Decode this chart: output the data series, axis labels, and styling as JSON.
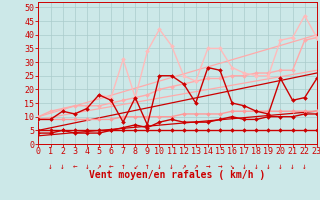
{
  "xlabel": "Vent moyen/en rafales ( km/h )",
  "xlim": [
    0,
    23
  ],
  "ylim": [
    0,
    52
  ],
  "yticks": [
    0,
    5,
    10,
    15,
    20,
    25,
    30,
    35,
    40,
    45,
    50
  ],
  "xticks": [
    0,
    1,
    2,
    3,
    4,
    5,
    6,
    7,
    8,
    9,
    10,
    11,
    12,
    13,
    14,
    15,
    16,
    17,
    18,
    19,
    20,
    21,
    22,
    23
  ],
  "bg_color": "#cce8e8",
  "grid_color": "#aacccc",
  "lines": [
    {
      "x": [
        0,
        1,
        2,
        3,
        4,
        5,
        6,
        7,
        8,
        9,
        10,
        11,
        12,
        13,
        14,
        15,
        16,
        17,
        18,
        19,
        20,
        21,
        22,
        23
      ],
      "y": [
        5,
        5,
        5,
        5,
        5,
        5,
        5,
        5,
        5,
        5,
        5,
        5,
        5,
        5,
        5,
        5,
        5,
        5,
        5,
        5,
        5,
        5,
        5,
        5
      ],
      "color": "#cc0000",
      "lw": 1.0,
      "marker": "D",
      "ms": 2.0
    },
    {
      "x": [
        0,
        23
      ],
      "y": [
        3,
        12
      ],
      "color": "#cc0000",
      "lw": 0.9,
      "marker": null,
      "ms": 0
    },
    {
      "x": [
        0,
        23
      ],
      "y": [
        5,
        26
      ],
      "color": "#cc0000",
      "lw": 0.9,
      "marker": null,
      "ms": 0
    },
    {
      "x": [
        0,
        23
      ],
      "y": [
        9,
        27
      ],
      "color": "#ffaaaa",
      "lw": 0.9,
      "marker": null,
      "ms": 0
    },
    {
      "x": [
        0,
        23
      ],
      "y": [
        10,
        40
      ],
      "color": "#ffaaaa",
      "lw": 0.9,
      "marker": null,
      "ms": 0
    },
    {
      "x": [
        0,
        1,
        2,
        3,
        4,
        5,
        6,
        7,
        8,
        9,
        10,
        11,
        12,
        13,
        14,
        15,
        16,
        17,
        18,
        19,
        20,
        21,
        22,
        23
      ],
      "y": [
        9,
        9,
        9,
        9,
        9,
        9,
        9,
        10,
        10,
        10,
        10,
        10,
        11,
        11,
        11,
        11,
        12,
        12,
        12,
        12,
        12,
        12,
        12,
        12
      ],
      "color": "#ff9999",
      "lw": 1.0,
      "marker": "D",
      "ms": 2.0
    },
    {
      "x": [
        0,
        1,
        2,
        3,
        4,
        5,
        6,
        7,
        8,
        9,
        10,
        11,
        12,
        13,
        14,
        15,
        16,
        17,
        18,
        19,
        20,
        21,
        22,
        23
      ],
      "y": [
        10,
        12,
        13,
        14,
        14,
        14,
        15,
        16,
        17,
        18,
        20,
        21,
        22,
        23,
        24,
        24,
        25,
        25,
        26,
        26,
        27,
        27,
        38,
        39
      ],
      "color": "#ffaaaa",
      "lw": 1.0,
      "marker": "D",
      "ms": 2.0
    },
    {
      "x": [
        5,
        6,
        7,
        8,
        9,
        10,
        11,
        12,
        13,
        14,
        15,
        16,
        17,
        18,
        19,
        20,
        21,
        22,
        23
      ],
      "y": [
        18,
        17,
        31,
        17,
        34,
        42,
        36,
        25,
        23,
        35,
        35,
        28,
        26,
        25,
        25,
        38,
        39,
        47,
        39
      ],
      "color": "#ffbbbb",
      "lw": 1.0,
      "marker": "D",
      "ms": 2.0
    },
    {
      "x": [
        0,
        1,
        2,
        3,
        4,
        5,
        6,
        7,
        8,
        9,
        10,
        11,
        12,
        13,
        14,
        15,
        16,
        17,
        18,
        19,
        20,
        21,
        22,
        23
      ],
      "y": [
        4,
        4,
        5,
        4,
        4,
        4,
        5,
        6,
        7,
        6,
        8,
        9,
        8,
        8,
        8,
        9,
        10,
        9,
        9,
        10,
        10,
        10,
        11,
        11
      ],
      "color": "#cc0000",
      "lw": 1.0,
      "marker": "D",
      "ms": 2.0
    },
    {
      "x": [
        0,
        1,
        2,
        3,
        4,
        5,
        6,
        7,
        8,
        9,
        10,
        11,
        12,
        13,
        14,
        15,
        16,
        17,
        18,
        19,
        20,
        21,
        22,
        23
      ],
      "y": [
        9,
        9,
        12,
        11,
        13,
        18,
        16,
        8,
        17,
        7,
        25,
        25,
        22,
        15,
        28,
        27,
        15,
        14,
        12,
        11,
        24,
        16,
        17,
        24
      ],
      "color": "#cc0000",
      "lw": 1.0,
      "marker": "D",
      "ms": 2.0
    }
  ],
  "arrow_symbols": [
    "↓",
    "↓",
    "←",
    "↓",
    "↗",
    "←",
    "↑",
    "↙",
    "↑",
    "↓",
    "↓",
    "↗",
    "↗",
    "→",
    "→",
    "↘",
    "↓",
    "↓",
    "↓",
    "↓",
    "↓",
    "↓"
  ],
  "tick_color": "#cc0000",
  "xlabel_color": "#cc0000",
  "xlabel_fontsize": 7,
  "tick_fontsize": 6
}
